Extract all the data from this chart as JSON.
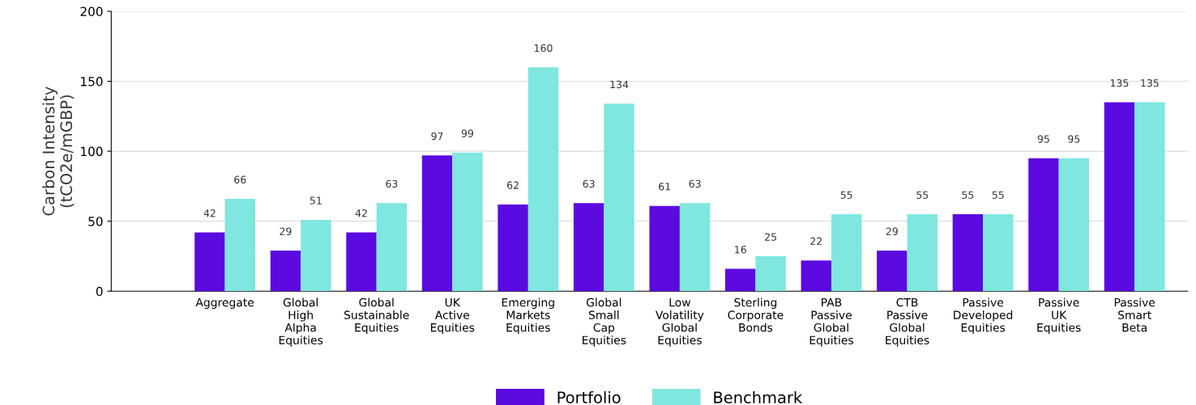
{
  "chart_data": {
    "type": "bar",
    "ylabel": "Carbon Intensity\n(tCO2e/mGBP)",
    "categories": [
      "Aggregate",
      "Global High Alpha Equities",
      "Global Sustainable Equities",
      "UK Active Equities",
      "Emerging Markets Equities",
      "Global Small Cap Equities",
      "Low Volatility Global Equities",
      "Sterling Corporate Bonds",
      "PAB Passive Global Equities",
      "CTB Passive Global Equities",
      "Passive Developed Equities",
      "Passive UK Equities",
      "Passive Smart Beta"
    ],
    "series": [
      {
        "name": "Portfolio",
        "color": "#5b0ae0",
        "values": [
          42,
          29,
          42,
          97,
          62,
          63,
          61,
          16,
          22,
          29,
          55,
          95,
          135
        ]
      },
      {
        "name": "Benchmark",
        "color": "#7fe6e0",
        "values": [
          66,
          51,
          63,
          99,
          160,
          134,
          63,
          25,
          55,
          55,
          55,
          95,
          135
        ]
      }
    ],
    "ylim": [
      0,
      200
    ],
    "yticks": [
      0,
      50,
      100,
      150,
      200
    ],
    "grid": "y",
    "legend": "bottom",
    "data_labels": true
  }
}
